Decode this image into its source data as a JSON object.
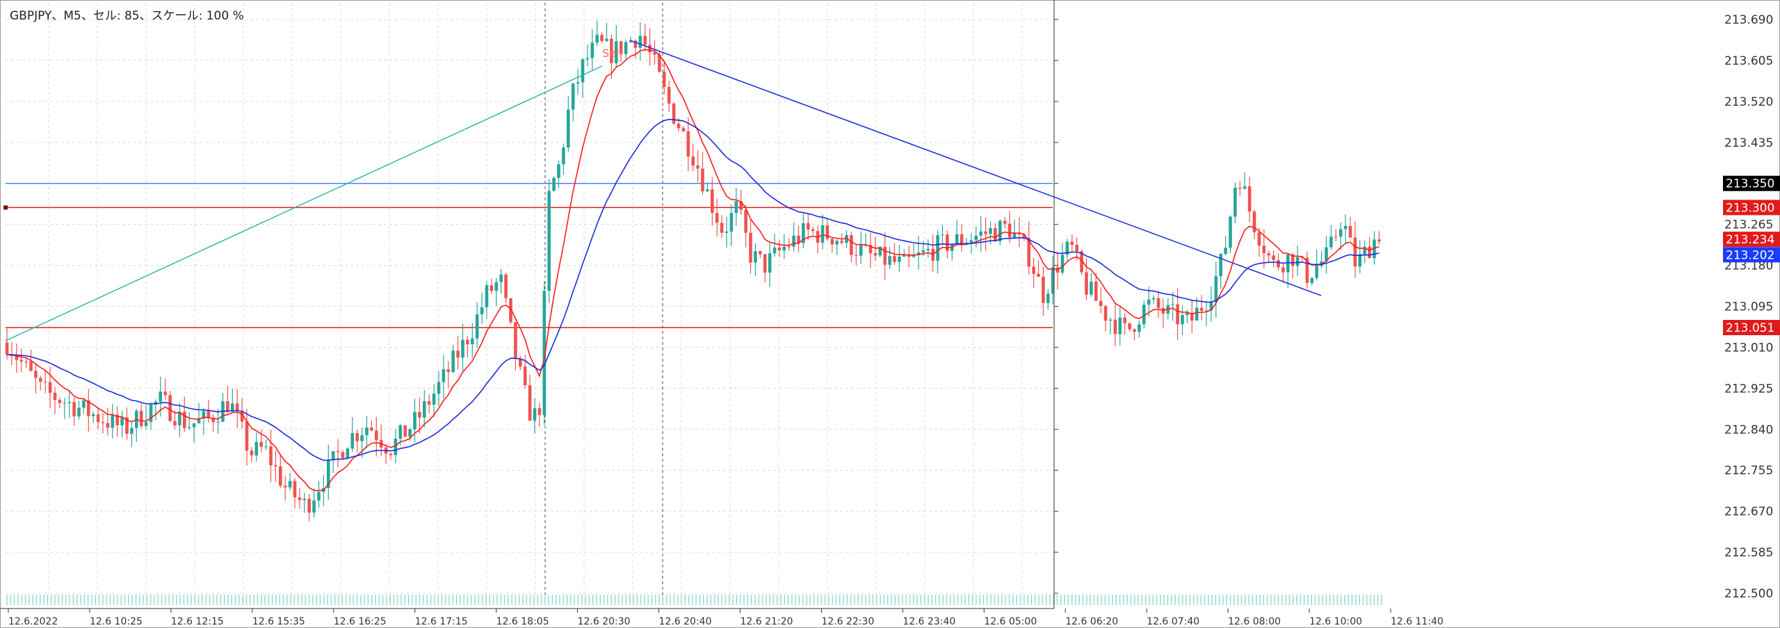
{
  "title": "GBPJPY、M5、セル: 85、スケール: 100 %",
  "price_axis": {
    "labels": [
      "213.690",
      "213.605",
      "213.520",
      "213.435",
      "213.350",
      "213.265",
      "213.180",
      "213.095",
      "213.010",
      "212.925",
      "212.840",
      "212.755",
      "212.670",
      "212.585",
      "212.500"
    ],
    "min": 212.5,
    "max": 213.69
  },
  "time_axis": {
    "labels": [
      "12.6.2022",
      "12.6 10:25",
      "12.6 12:15",
      "12.6 15:35",
      "12.6 16:25",
      "12.6 17:15",
      "12.6 18:05",
      "12.6 20:30",
      "12.6 20:40",
      "12.6 21:20",
      "12.6 22:30",
      "12.6 23:40",
      "12.6 05:00",
      "12.6 06:20",
      "12.6 07:40",
      "12.6 08:00",
      "12.6 10:00",
      "12.6 11:40"
    ]
  },
  "price_badges": [
    {
      "label": "213.350",
      "price": 213.35,
      "bg": "#000000"
    },
    {
      "label": "213.300",
      "price": 213.3,
      "bg": "#e11b1b"
    },
    {
      "label": "213.234",
      "price": 213.234,
      "bg": "#e11b1b"
    },
    {
      "label": "213.202",
      "price": 213.202,
      "bg": "#1a3cff"
    },
    {
      "label": "213.051",
      "price": 213.051,
      "bg": "#e11b1b"
    }
  ],
  "sell_label": "Sell",
  "colors": {
    "bull": "#26a69a",
    "bear": "#ef5350",
    "ma_fast": "#ff1a1a",
    "ma_slow": "#1a2bdc",
    "trend_up": "#26b3a0",
    "trend_down": "#2233dd",
    "hline_blue": "#2f66ff",
    "hline_red": "#e11b1b",
    "grid": "#dcdcdc"
  }
}
